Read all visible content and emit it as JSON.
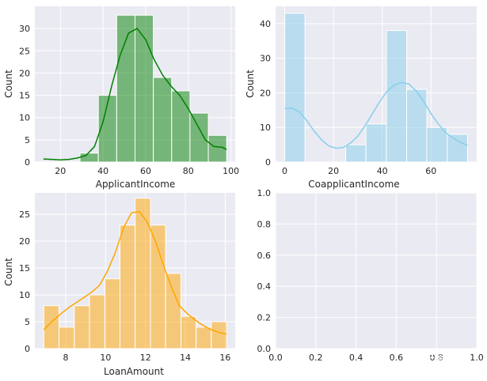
{
  "chart_data": [
    {
      "type": "bar",
      "variant": "histogram-with-kde",
      "xlabel": "ApplicantIncome",
      "ylabel": "Count",
      "color": "#008000",
      "bins": [
        {
          "start": 12,
          "end": 20.6,
          "count": 0
        },
        {
          "start": 20.6,
          "end": 29.2,
          "count": 0
        },
        {
          "start": 29.2,
          "end": 37.8,
          "count": 2
        },
        {
          "start": 37.8,
          "end": 46.4,
          "count": 15
        },
        {
          "start": 46.4,
          "end": 55.0,
          "count": 33
        },
        {
          "start": 55.0,
          "end": 63.6,
          "count": 33
        },
        {
          "start": 63.6,
          "end": 72.2,
          "count": 19
        },
        {
          "start": 72.2,
          "end": 80.8,
          "count": 16
        },
        {
          "start": 80.8,
          "end": 89.4,
          "count": 11
        },
        {
          "start": 89.4,
          "end": 98,
          "count": 6
        }
      ],
      "kde": {
        "x": [
          12,
          16,
          20,
          24,
          28,
          32,
          36,
          40,
          44,
          48,
          52,
          56,
          60,
          64,
          68,
          72,
          76,
          80,
          84,
          88,
          92,
          96,
          98
        ],
        "y": [
          0.7,
          0.6,
          0.5,
          0.6,
          0.9,
          1.5,
          3.5,
          9,
          17,
          24,
          29,
          30,
          27.5,
          23,
          19.5,
          17,
          15,
          12,
          8.5,
          5,
          3.5,
          3.3,
          2.8
        ]
      },
      "xlim": [
        8,
        102
      ],
      "ylim": [
        0,
        35
      ],
      "xticks": [
        20,
        40,
        60,
        80,
        100
      ],
      "yticks": [
        0,
        5,
        10,
        15,
        20,
        25,
        30
      ]
    },
    {
      "type": "bar",
      "variant": "histogram-with-kde",
      "xlabel": "CoapplicantIncome",
      "ylabel": "Count",
      "color": "#87ceeb",
      "bins": [
        {
          "start": 0,
          "end": 8.3,
          "count": 43
        },
        {
          "start": 8.3,
          "end": 16.7,
          "count": 0
        },
        {
          "start": 16.7,
          "end": 25,
          "count": 0
        },
        {
          "start": 25,
          "end": 33.3,
          "count": 5
        },
        {
          "start": 33.3,
          "end": 41.7,
          "count": 11
        },
        {
          "start": 41.7,
          "end": 50,
          "count": 38
        },
        {
          "start": 50,
          "end": 58.3,
          "count": 21
        },
        {
          "start": 58.3,
          "end": 66.7,
          "count": 10
        },
        {
          "start": 66.7,
          "end": 75,
          "count": 8
        }
      ],
      "kde": {
        "x": [
          0,
          3,
          6,
          9,
          12,
          15,
          18,
          21,
          24,
          27,
          30,
          33,
          36,
          39,
          42,
          45,
          48,
          51,
          54,
          57,
          60,
          63,
          66,
          69,
          72,
          75
        ],
        "y": [
          15.5,
          15.6,
          14.5,
          12,
          9,
          6.5,
          4.7,
          4,
          4.2,
          5.5,
          7.5,
          10.5,
          14,
          17.5,
          20.5,
          22.3,
          23,
          22.5,
          20.5,
          17.5,
          14,
          11,
          8.5,
          7,
          5.7,
          4.8
        ]
      },
      "xlim": [
        -3.75,
        78.75
      ],
      "ylim": [
        0,
        45
      ],
      "xticks": [
        0,
        20,
        40,
        60
      ],
      "yticks": [
        0,
        10,
        20,
        30,
        40
      ]
    },
    {
      "type": "bar",
      "variant": "histogram-with-kde",
      "xlabel": "LoanAmount",
      "ylabel": "Count",
      "color": "#ffa500",
      "bins": [
        {
          "start": 6.9,
          "end": 7.66,
          "count": 8
        },
        {
          "start": 7.66,
          "end": 8.43,
          "count": 4
        },
        {
          "start": 8.43,
          "end": 9.19,
          "count": 8
        },
        {
          "start": 9.19,
          "end": 9.96,
          "count": 10
        },
        {
          "start": 9.96,
          "end": 10.72,
          "count": 13
        },
        {
          "start": 10.72,
          "end": 11.48,
          "count": 23
        },
        {
          "start": 11.48,
          "end": 12.25,
          "count": 28
        },
        {
          "start": 12.25,
          "end": 13.01,
          "count": 23
        },
        {
          "start": 13.01,
          "end": 13.78,
          "count": 14
        },
        {
          "start": 13.78,
          "end": 14.54,
          "count": 6
        },
        {
          "start": 14.54,
          "end": 15.3,
          "count": 4
        },
        {
          "start": 15.3,
          "end": 16.07,
          "count": 5
        }
      ],
      "kde": {
        "x": [
          6.9,
          7.3,
          7.7,
          8.1,
          8.5,
          8.9,
          9.3,
          9.7,
          10.1,
          10.5,
          10.9,
          11.3,
          11.7,
          12.1,
          12.5,
          12.9,
          13.3,
          13.7,
          14.1,
          14.5,
          14.9,
          15.3,
          15.7,
          16.07
        ],
        "y": [
          3.5,
          5,
          6.3,
          7.5,
          8.5,
          9.5,
          10.5,
          11.8,
          14.5,
          18,
          22.5,
          25.3,
          25.5,
          23.5,
          20,
          15.5,
          11.5,
          8,
          6.5,
          5.3,
          4.3,
          3.5,
          3,
          2.7
        ]
      },
      "xlim": [
        6.45,
        16.5
      ],
      "ylim": [
        0,
        29
      ],
      "xticks": [
        8,
        10,
        12,
        14,
        16
      ],
      "yticks": [
        0,
        5,
        10,
        15,
        20,
        25
      ]
    },
    {
      "type": "line",
      "variant": "empty-axes",
      "xlabel": "",
      "ylabel": "",
      "xlim": [
        0,
        1
      ],
      "ylim": [
        0,
        1
      ],
      "xticks": [
        "0.0",
        "0.2",
        "0.4",
        "0.6",
        "0.8",
        "1.0"
      ],
      "yticks": [
        "0.0",
        "0.2",
        "0.4",
        "0.6",
        "0.8",
        "1.0"
      ]
    }
  ],
  "theme": {
    "axes_background": "#eaeaf2",
    "grid_color": "#ffffff",
    "text_color": "#262626",
    "grid": true
  },
  "watermark": {
    "text": "无丽小屋"
  }
}
